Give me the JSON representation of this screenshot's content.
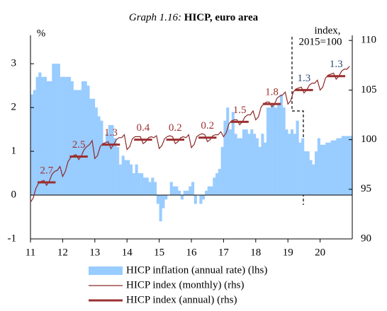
{
  "chart_data": {
    "type": "bar-line",
    "title_prefix": "Graph 1.16:",
    "title": "HICP, euro area",
    "y_label": "%",
    "y2_label": [
      "index,",
      "2015=100"
    ],
    "xlim": [
      11,
      21
    ],
    "xticks": [
      11,
      12,
      13,
      14,
      15,
      16,
      17,
      18,
      19,
      20
    ],
    "ylim": [
      -1,
      3.6
    ],
    "yticks": [
      -1,
      0,
      1,
      2,
      3
    ],
    "y2lim": [
      90,
      110.3
    ],
    "y2ticks": [
      90,
      95,
      100,
      105,
      110
    ],
    "x": [
      11,
      11.083,
      11.167,
      11.25,
      11.333,
      11.417,
      11.5,
      11.583,
      11.667,
      11.75,
      11.833,
      11.917,
      12,
      12.083,
      12.167,
      12.25,
      12.333,
      12.417,
      12.5,
      12.583,
      12.667,
      12.75,
      12.833,
      12.917,
      13,
      13.083,
      13.167,
      13.25,
      13.333,
      13.417,
      13.5,
      13.583,
      13.667,
      13.75,
      13.833,
      13.917,
      14,
      14.083,
      14.167,
      14.25,
      14.333,
      14.417,
      14.5,
      14.583,
      14.667,
      14.75,
      14.833,
      14.917,
      15,
      15.083,
      15.167,
      15.25,
      15.333,
      15.417,
      15.5,
      15.583,
      15.667,
      15.75,
      15.833,
      15.917,
      16,
      16.083,
      16.167,
      16.25,
      16.333,
      16.417,
      16.5,
      16.583,
      16.667,
      16.75,
      16.833,
      16.917,
      17,
      17.083,
      17.167,
      17.25,
      17.333,
      17.417,
      17.5,
      17.583,
      17.667,
      17.75,
      17.833,
      17.917,
      18,
      18.083,
      18.167,
      18.25,
      18.333,
      18.417,
      18.5,
      18.583,
      18.667,
      18.75,
      18.833,
      18.917,
      19,
      19.083,
      19.167,
      19.25,
      19.333,
      19.417,
      19.5,
      19.583,
      19.667,
      19.75,
      19.833,
      19.917,
      20,
      20.083,
      20.167,
      20.25,
      20.333,
      20.417,
      20.5,
      20.583,
      20.667,
      20.75,
      20.833,
      20.917
    ],
    "series": [
      {
        "name": "HICP inflation (annual rate) (lhs)",
        "color": "#99ccff",
        "kind": "bar",
        "values": [
          2.3,
          2.4,
          2.7,
          2.8,
          2.7,
          2.7,
          2.6,
          2.6,
          3.0,
          3.0,
          3.0,
          2.7,
          2.7,
          2.7,
          2.7,
          2.6,
          2.4,
          2.4,
          2.4,
          2.6,
          2.6,
          2.5,
          2.2,
          2.2,
          2.0,
          1.8,
          1.7,
          1.2,
          1.4,
          1.6,
          1.6,
          1.3,
          1.1,
          0.7,
          0.9,
          0.8,
          0.8,
          0.7,
          0.5,
          0.7,
          0.5,
          0.5,
          0.4,
          0.4,
          0.3,
          0.4,
          0.3,
          -0.2,
          -0.6,
          -0.3,
          -0.1,
          0.0,
          0.3,
          0.2,
          0.2,
          0.1,
          -0.1,
          0.1,
          0.1,
          0.2,
          0.3,
          -0.2,
          0.0,
          -0.2,
          -0.1,
          0.1,
          0.2,
          0.2,
          0.4,
          0.5,
          0.6,
          1.1,
          1.7,
          2.0,
          1.5,
          1.9,
          1.4,
          1.3,
          1.3,
          1.5,
          1.5,
          1.4,
          1.5,
          1.4,
          1.3,
          1.1,
          1.4,
          1.2,
          2.0,
          2.0,
          2.1,
          2.0,
          2.1,
          2.3,
          2.0,
          1.5,
          1.4,
          1.5,
          1.4,
          1.7,
          1.2,
          1.3,
          1.0,
          1.0,
          0.8,
          0.7,
          1.0,
          1.3,
          1.15,
          1.15,
          1.2,
          1.2,
          1.25,
          1.25,
          1.3,
          1.3,
          1.35,
          1.35,
          1.35,
          1.35
        ]
      },
      {
        "name": "HICP index (monthly) (rhs)",
        "color": "#8b2a2a",
        "kind": "line",
        "axis": "y2",
        "values": [
          93.7,
          94.1,
          95.1,
          95.6,
          95.8,
          95.9,
          95.4,
          95.8,
          96.5,
          96.8,
          96.9,
          97.3,
          96.3,
          96.8,
          97.8,
          98.2,
          98.4,
          98.5,
          98.0,
          98.4,
          99.0,
          99.3,
          99.5,
          99.9,
          98.1,
          98.4,
          99.3,
          99.6,
          99.7,
          99.8,
          99.1,
          99.5,
          100.0,
          100.2,
          100.2,
          100.5,
          99.0,
          99.3,
          100.1,
          100.3,
          100.3,
          100.3,
          99.6,
          99.8,
          100.2,
          100.3,
          100.2,
          100.4,
          99.1,
          99.4,
          100.1,
          100.3,
          100.4,
          100.3,
          99.6,
          99.8,
          100.2,
          100.3,
          100.2,
          100.5,
          99.2,
          99.5,
          100.3,
          100.5,
          100.6,
          100.5,
          99.8,
          100.0,
          100.4,
          100.5,
          100.5,
          100.8,
          100.3,
          100.7,
          101.6,
          101.9,
          102.0,
          102.0,
          101.5,
          101.8,
          102.3,
          102.5,
          102.5,
          102.9,
          102.0,
          102.3,
          103.3,
          103.6,
          103.8,
          103.8,
          103.3,
          103.6,
          104.2,
          104.4,
          104.5,
          104.8,
          103.6,
          103.9,
          104.8,
          105.1,
          105.2,
          105.3,
          104.7,
          105.0,
          105.5,
          105.7,
          105.7,
          106.0,
          105.0,
          105.3,
          106.2,
          106.5,
          106.6,
          106.7,
          106.1,
          106.4,
          106.9,
          107.1,
          107.1,
          107.4
        ]
      },
      {
        "name": "HICP index (annual) (rhs)",
        "color": "#9b3030",
        "kind": "step",
        "axis": "y2",
        "x": [
          11,
          12,
          13,
          14,
          15,
          16,
          17,
          18,
          19,
          20
        ],
        "values": [
          95.7,
          98.3,
          99.5,
          100.0,
          100.0,
          100.2,
          101.8,
          103.6,
          105.0,
          106.4
        ]
      }
    ],
    "annotations": [
      "2.7",
      "2.5",
      "1.3",
      "0.4",
      "0.2",
      "0.2",
      "1.5",
      "1.8",
      "1.3",
      "1.3"
    ],
    "annotation_colors": [
      "#a0302f",
      "#a0302f",
      "#a0302f",
      "#a0302f",
      "#a0302f",
      "#a0302f",
      "#a0302f",
      "#a0302f",
      "#2e4a7a",
      "#2e4a7a"
    ]
  }
}
